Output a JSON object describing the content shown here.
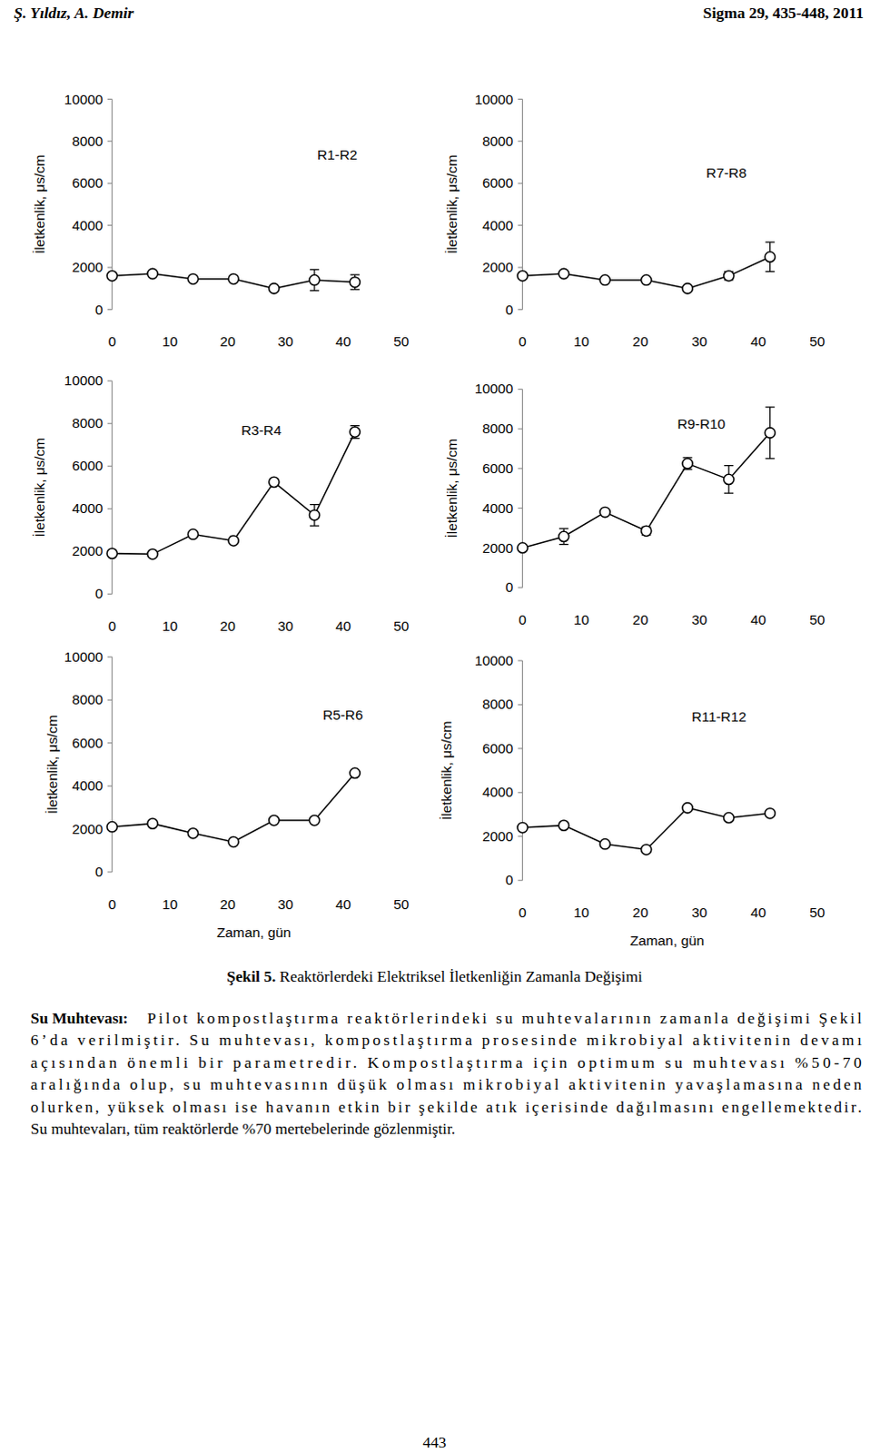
{
  "header": {
    "authors": "Ş. Yıldız, A. Demir",
    "journal": "Sigma 29, 435-448, 2011"
  },
  "chart_data": [
    {
      "type": "line",
      "title": "R1-R2",
      "ylabel": "İletkenlik, μs/cm",
      "x": [
        0,
        7,
        14,
        21,
        28,
        35,
        42
      ],
      "xlim": [
        0,
        50
      ],
      "xticks": [
        0,
        10,
        20,
        30,
        40,
        50
      ],
      "ylim": [
        0,
        10000
      ],
      "yticks": [
        0,
        2000,
        4000,
        6000,
        8000,
        10000
      ],
      "series": [
        {
          "color": "#000000",
          "marker": "circle",
          "values": [
            1600,
            1700,
            1450,
            1450,
            1000,
            1400,
            1300
          ],
          "errors": [
            null,
            null,
            null,
            null,
            null,
            500,
            350
          ]
        }
      ]
    },
    {
      "type": "line",
      "title": "R7-R8",
      "ylabel": "İletkenlik, μs/cm",
      "x": [
        0,
        7,
        14,
        21,
        28,
        35,
        42
      ],
      "xlim": [
        0,
        50
      ],
      "xticks": [
        0,
        10,
        20,
        30,
        40,
        50
      ],
      "ylim": [
        0,
        10000
      ],
      "yticks": [
        0,
        2000,
        4000,
        6000,
        8000,
        10000
      ],
      "series": [
        {
          "color": "#000000",
          "marker": "circle",
          "values": [
            1600,
            1700,
            1400,
            1400,
            1000,
            1600,
            2500
          ],
          "errors": [
            null,
            null,
            null,
            null,
            null,
            200,
            700
          ]
        }
      ]
    },
    {
      "type": "line",
      "title": "R3-R4",
      "ylabel": "İletkenlik, μs/cm",
      "x": [
        0,
        7,
        14,
        21,
        28,
        35,
        42
      ],
      "xlim": [
        0,
        50
      ],
      "xticks": [
        0,
        10,
        20,
        30,
        40,
        50
      ],
      "ylim": [
        0,
        10000
      ],
      "yticks": [
        0,
        2000,
        4000,
        6000,
        8000,
        10000
      ],
      "series": [
        {
          "color": "#000000",
          "marker": "circle",
          "values": [
            1900,
            1870,
            2800,
            2500,
            5250,
            3700,
            7600
          ],
          "errors": [
            null,
            null,
            null,
            null,
            null,
            500,
            300
          ]
        }
      ]
    },
    {
      "type": "line",
      "title": "R9-R10",
      "ylabel": "İletkenlik, μs/cm",
      "x": [
        0,
        7,
        14,
        21,
        28,
        35,
        42
      ],
      "xlim": [
        0,
        50
      ],
      "xticks": [
        0,
        10,
        20,
        30,
        40,
        50
      ],
      "ylim": [
        0,
        10000
      ],
      "yticks": [
        0,
        2000,
        4000,
        6000,
        8000,
        10000
      ],
      "series": [
        {
          "color": "#000000",
          "marker": "circle",
          "values": [
            2000,
            2570,
            3800,
            2850,
            6250,
            5450,
            7800
          ],
          "errors": [
            null,
            400,
            null,
            200,
            300,
            700,
            1300
          ]
        }
      ]
    },
    {
      "type": "line",
      "title": "R5-R6",
      "ylabel": "İletkenlik, μs/cm",
      "xlabel": "Zaman, gün",
      "x": [
        0,
        7,
        14,
        21,
        28,
        35,
        42
      ],
      "xlim": [
        0,
        50
      ],
      "xticks": [
        0,
        10,
        20,
        30,
        40,
        50
      ],
      "ylim": [
        0,
        10000
      ],
      "yticks": [
        0,
        2000,
        4000,
        6000,
        8000,
        10000
      ],
      "series": [
        {
          "color": "#000000",
          "marker": "circle",
          "values": [
            2100,
            2250,
            1800,
            1400,
            2400,
            2400,
            4600
          ],
          "errors": [
            null,
            null,
            null,
            null,
            null,
            null,
            null
          ]
        }
      ]
    },
    {
      "type": "line",
      "title": "R11-R12",
      "ylabel": "İletkenlik, μs/cm",
      "xlabel": "Zaman, gün",
      "x": [
        0,
        7,
        14,
        21,
        28,
        35,
        42
      ],
      "xlim": [
        0,
        50
      ],
      "xticks": [
        0,
        10,
        20,
        30,
        40,
        50
      ],
      "ylim": [
        0,
        10000
      ],
      "yticks": [
        0,
        2000,
        4000,
        6000,
        8000,
        10000
      ],
      "series": [
        {
          "color": "#000000",
          "marker": "circle",
          "values": [
            2400,
            2500,
            1650,
            1400,
            3300,
            2850,
            3050
          ],
          "errors": [
            null,
            null,
            null,
            null,
            null,
            null,
            null
          ]
        }
      ]
    }
  ],
  "caption": {
    "label": "Şekil 5.",
    "text": "Reaktörlerdeki Elektriksel İletkenliğin Zamanla Değişimi"
  },
  "body": {
    "heading": "Su Muhtevası:",
    "lines": [
      "Pilot kompostlaştırma reaktörlerindeki su muhtevalarının zamanla değişimi Şekil",
      "6’da verilmiştir. Su muhtevası, kompostlaştırma prosesinde mikrobiyal aktivitenin devamı",
      "açısından önemli bir parametredir. Kompostlaştırma için optimum su muhtevası %50-70",
      "aralığında olup, su muhtevasının düşük olması mikrobiyal aktivitenin yavaşlamasına neden",
      "olurken, yüksek olması ise havanın etkin bir şekilde atık içerisinde dağılmasını engellemektedir.",
      "Su muhtevaları, tüm reaktörlerde  %70 mertebelerinde gözlenmiştir."
    ]
  },
  "page_number": 443
}
